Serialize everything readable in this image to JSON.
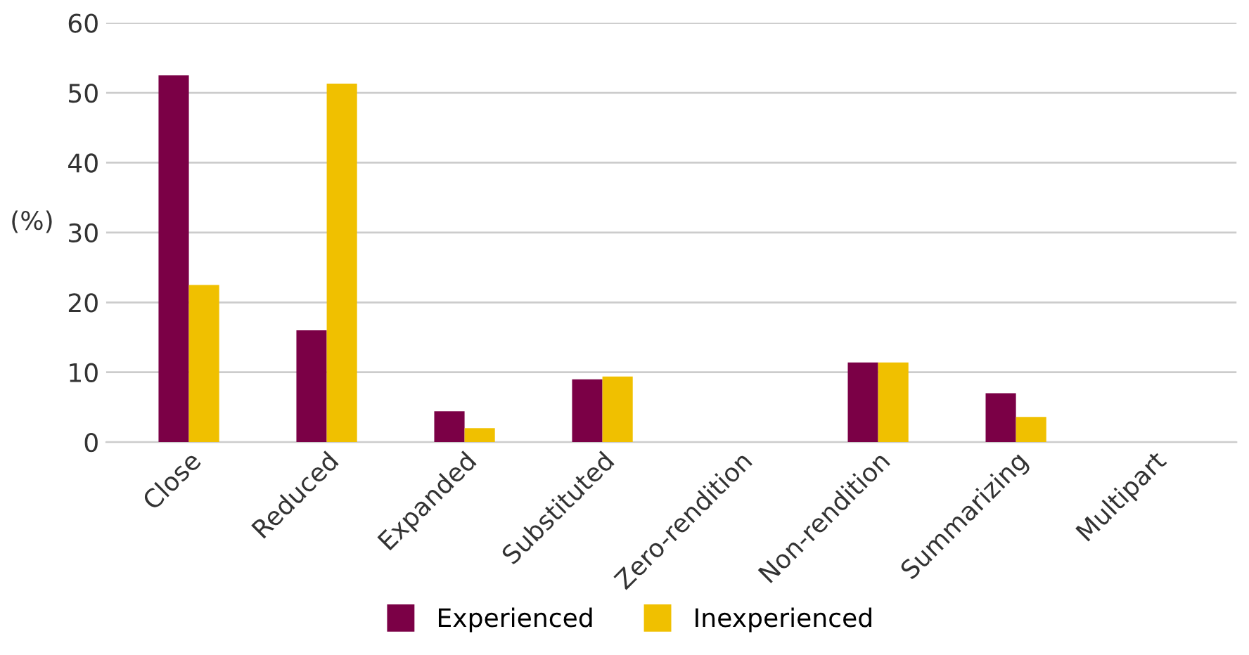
{
  "chart_data": {
    "type": "bar",
    "ylabel": "(%)",
    "categories": [
      "Close",
      "Reduced",
      "Expanded",
      "Substituted",
      "Zero-rendition",
      "Non-rendition",
      "Summarizing",
      "Multipart"
    ],
    "series": [
      {
        "name": "Experienced",
        "color": "#7b0046",
        "values": [
          52.5,
          16,
          4.4,
          9,
          0,
          11.4,
          7,
          0
        ]
      },
      {
        "name": "Inexperienced",
        "color": "#f0c000",
        "values": [
          22.5,
          51.3,
          2,
          9.4,
          0,
          11.4,
          3.6,
          0
        ]
      }
    ],
    "ylim": [
      0,
      60
    ],
    "yticks": [
      0,
      10,
      20,
      30,
      40,
      50,
      60
    ],
    "grid": "y",
    "legend": "bottom"
  }
}
